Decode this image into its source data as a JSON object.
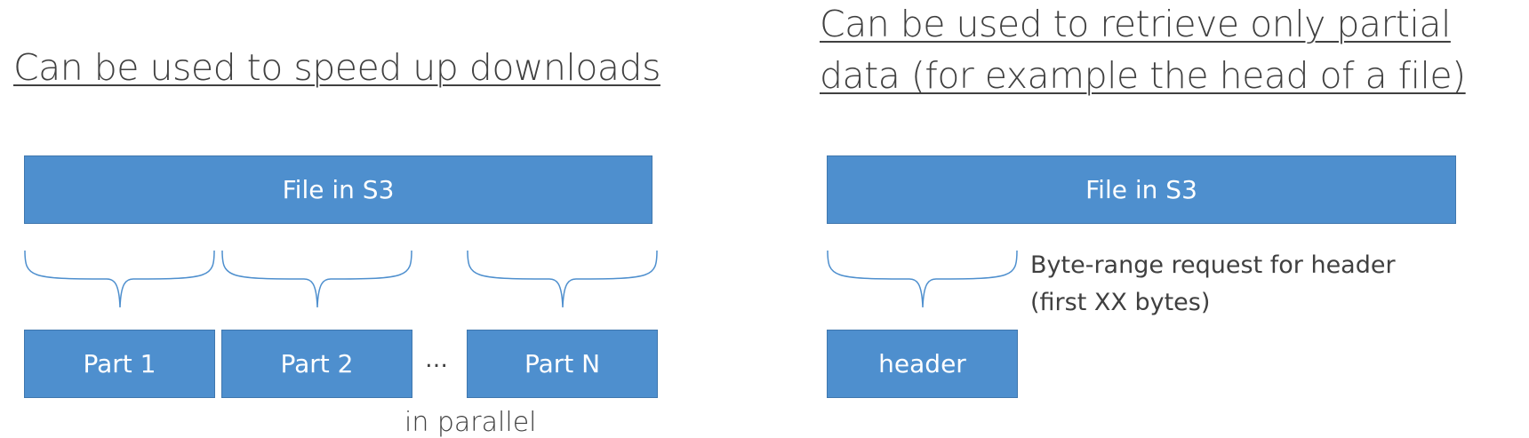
{
  "left_panel": {
    "heading": "Can be used to speed up downloads",
    "file_box_label": "File in S3",
    "parts": [
      "Part 1",
      "Part 2",
      "Part N"
    ],
    "ellipsis": "…",
    "caption": "in parallel"
  },
  "right_panel": {
    "heading_line1": "Can be used to retrieve only partial",
    "heading_line2": "data (for example the head of a file)",
    "file_box_label": "File in S3",
    "request_label_line1": "Byte-range request for header",
    "request_label_line2": "(first XX bytes)",
    "header_box_label": "header"
  },
  "colors": {
    "box_fill": "#4e8fce",
    "box_border": "#3f77ae",
    "text": "#404040",
    "brace": "#4e8fce"
  }
}
